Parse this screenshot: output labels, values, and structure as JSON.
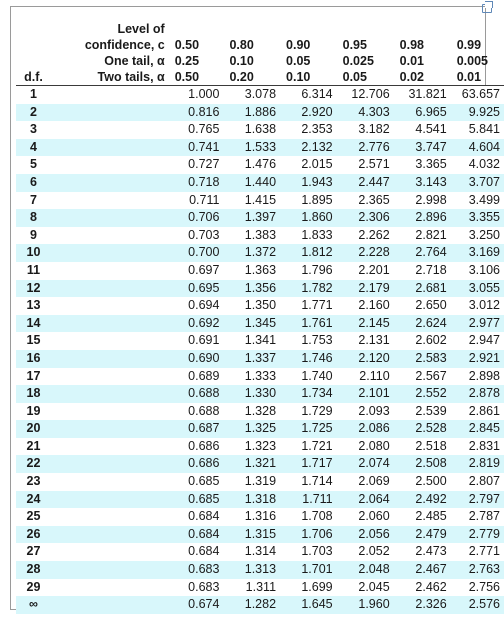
{
  "header": {
    "confidence_label_line1": "Level of",
    "confidence_label_line2": "confidence, c",
    "confidence": [
      "0.50",
      "0.80",
      "0.90",
      "0.95",
      "0.98",
      "0.99"
    ],
    "one_tail_label": "One tail, α",
    "one_tail": [
      "0.25",
      "0.10",
      "0.05",
      "0.025",
      "0.01",
      "0.005"
    ],
    "df_label": "d.f.",
    "two_tails_label": "Two tails, α",
    "two_tails": [
      "0.50",
      "0.20",
      "0.10",
      "0.05",
      "0.02",
      "0.01"
    ]
  },
  "rows": [
    {
      "df": "1",
      "v": [
        "1.000",
        "3.078",
        "6.314",
        "12.706",
        "31.821",
        "63.657"
      ]
    },
    {
      "df": "2",
      "v": [
        "0.816",
        "1.886",
        "2.920",
        "4.303",
        "6.965",
        "9.925"
      ]
    },
    {
      "df": "3",
      "v": [
        "0.765",
        "1.638",
        "2.353",
        "3.182",
        "4.541",
        "5.841"
      ]
    },
    {
      "df": "4",
      "v": [
        "0.741",
        "1.533",
        "2.132",
        "2.776",
        "3.747",
        "4.604"
      ]
    },
    {
      "df": "5",
      "v": [
        "0.727",
        "1.476",
        "2.015",
        "2.571",
        "3.365",
        "4.032"
      ]
    },
    {
      "df": "6",
      "v": [
        "0.718",
        "1.440",
        "1.943",
        "2.447",
        "3.143",
        "3.707"
      ]
    },
    {
      "df": "7",
      "v": [
        "0.711",
        "1.415",
        "1.895",
        "2.365",
        "2.998",
        "3.499"
      ]
    },
    {
      "df": "8",
      "v": [
        "0.706",
        "1.397",
        "1.860",
        "2.306",
        "2.896",
        "3.355"
      ]
    },
    {
      "df": "9",
      "v": [
        "0.703",
        "1.383",
        "1.833",
        "2.262",
        "2.821",
        "3.250"
      ]
    },
    {
      "df": "10",
      "v": [
        "0.700",
        "1.372",
        "1.812",
        "2.228",
        "2.764",
        "3.169"
      ]
    },
    {
      "df": "11",
      "v": [
        "0.697",
        "1.363",
        "1.796",
        "2.201",
        "2.718",
        "3.106"
      ]
    },
    {
      "df": "12",
      "v": [
        "0.695",
        "1.356",
        "1.782",
        "2.179",
        "2.681",
        "3.055"
      ]
    },
    {
      "df": "13",
      "v": [
        "0.694",
        "1.350",
        "1.771",
        "2.160",
        "2.650",
        "3.012"
      ]
    },
    {
      "df": "14",
      "v": [
        "0.692",
        "1.345",
        "1.761",
        "2.145",
        "2.624",
        "2.977"
      ]
    },
    {
      "df": "15",
      "v": [
        "0.691",
        "1.341",
        "1.753",
        "2.131",
        "2.602",
        "2.947"
      ]
    },
    {
      "df": "16",
      "v": [
        "0.690",
        "1.337",
        "1.746",
        "2.120",
        "2.583",
        "2.921"
      ]
    },
    {
      "df": "17",
      "v": [
        "0.689",
        "1.333",
        "1.740",
        "2.110",
        "2.567",
        "2.898"
      ]
    },
    {
      "df": "18",
      "v": [
        "0.688",
        "1.330",
        "1.734",
        "2.101",
        "2.552",
        "2.878"
      ]
    },
    {
      "df": "19",
      "v": [
        "0.688",
        "1.328",
        "1.729",
        "2.093",
        "2.539",
        "2.861"
      ]
    },
    {
      "df": "20",
      "v": [
        "0.687",
        "1.325",
        "1.725",
        "2.086",
        "2.528",
        "2.845"
      ]
    },
    {
      "df": "21",
      "v": [
        "0.686",
        "1.323",
        "1.721",
        "2.080",
        "2.518",
        "2.831"
      ]
    },
    {
      "df": "22",
      "v": [
        "0.686",
        "1.321",
        "1.717",
        "2.074",
        "2.508",
        "2.819"
      ]
    },
    {
      "df": "23",
      "v": [
        "0.685",
        "1.319",
        "1.714",
        "2.069",
        "2.500",
        "2.807"
      ]
    },
    {
      "df": "24",
      "v": [
        "0.685",
        "1.318",
        "1.711",
        "2.064",
        "2.492",
        "2.797"
      ]
    },
    {
      "df": "25",
      "v": [
        "0.684",
        "1.316",
        "1.708",
        "2.060",
        "2.485",
        "2.787"
      ]
    },
    {
      "df": "26",
      "v": [
        "0.684",
        "1.315",
        "1.706",
        "2.056",
        "2.479",
        "2.779"
      ]
    },
    {
      "df": "27",
      "v": [
        "0.684",
        "1.314",
        "1.703",
        "2.052",
        "2.473",
        "2.771"
      ]
    },
    {
      "df": "28",
      "v": [
        "0.683",
        "1.313",
        "1.701",
        "2.048",
        "2.467",
        "2.763"
      ]
    },
    {
      "df": "29",
      "v": [
        "0.683",
        "1.311",
        "1.699",
        "2.045",
        "2.462",
        "2.756"
      ]
    },
    {
      "df": "∞",
      "v": [
        "0.674",
        "1.282",
        "1.645",
        "1.960",
        "2.326",
        "2.576"
      ]
    }
  ],
  "colors": {
    "stripe": "#d8f7fb",
    "text": "#1a1a1a"
  },
  "icons": {
    "corner": "maximize-icon"
  }
}
